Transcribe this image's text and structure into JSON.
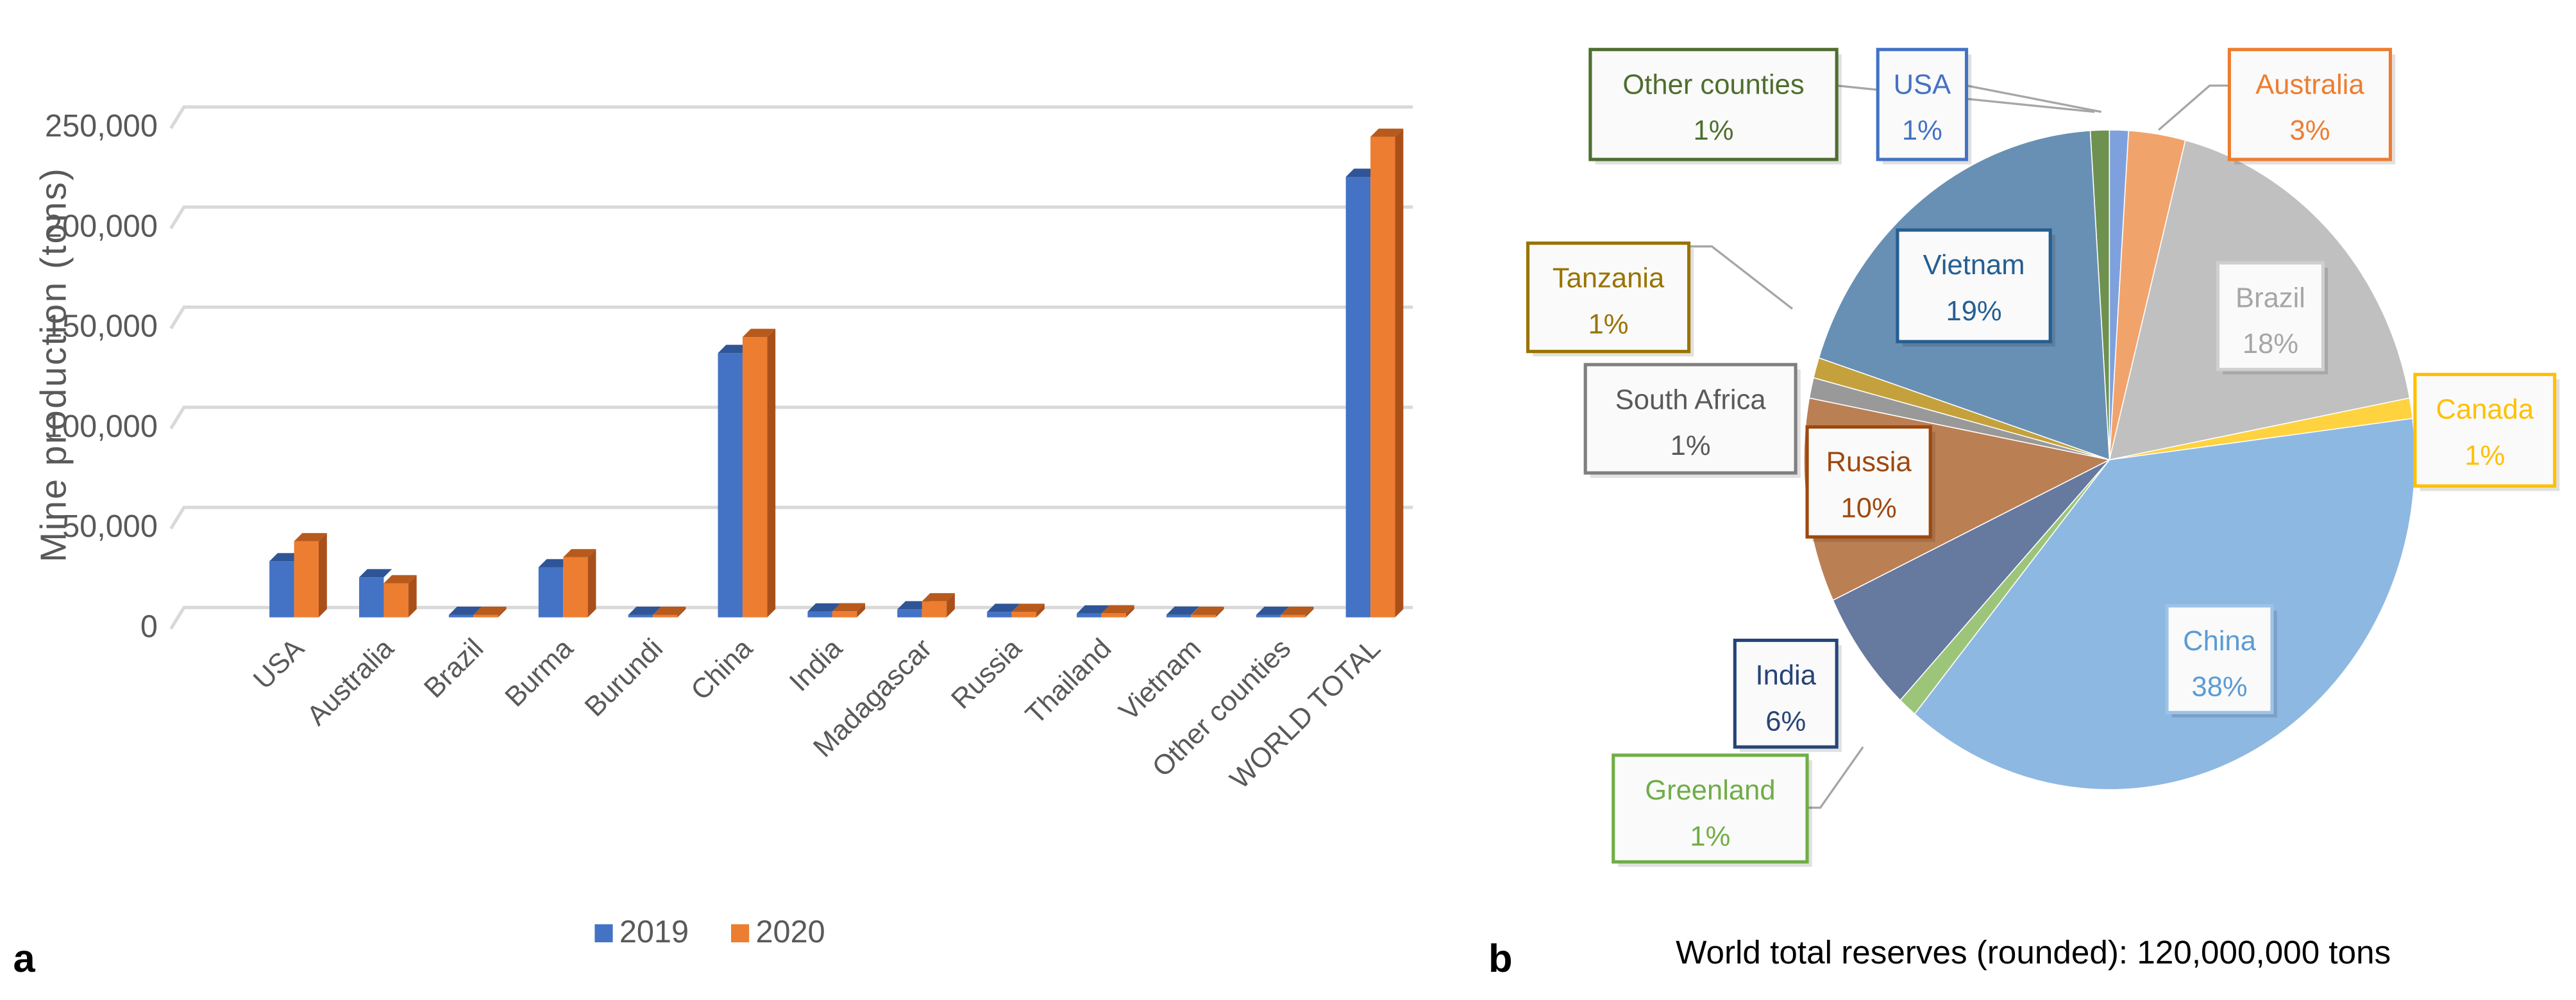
{
  "chart_data": [
    {
      "type": "bar",
      "panel_label": "a",
      "title": "",
      "xlabel": "",
      "ylabel": "Mine production (tons)",
      "ylim": [
        0,
        250000
      ],
      "yticks": [
        "0",
        "50,000",
        "100,000",
        "150,000",
        "200,000",
        "250,000"
      ],
      "ytick_values": [
        0,
        50000,
        100000,
        150000,
        200000,
        250000
      ],
      "grid": true,
      "legend_position": "bottom",
      "categories": [
        "USA",
        "Australia",
        "Brazil",
        "Burma",
        "Burundi",
        "China",
        "India",
        "Madagascar",
        "Russia",
        "Thailand",
        "Vietnam",
        "Other counties",
        "WORLD TOTAL"
      ],
      "series": [
        {
          "name": "2019",
          "color": "#4472c4",
          "values": [
            28000,
            20000,
            710,
            25000,
            200,
            132000,
            2900,
            4000,
            2700,
            1900,
            1300,
            100,
            220000
          ]
        },
        {
          "name": "2020",
          "color": "#ed7d31",
          "values": [
            38000,
            17000,
            600,
            30000,
            300,
            140000,
            3000,
            8000,
            2700,
            2000,
            1000,
            100,
            240000
          ]
        }
      ]
    },
    {
      "type": "pie",
      "panel_label": "b",
      "caption": "World total reserves (rounded): 120,000,000 tons",
      "slices": [
        {
          "label": "Other counties",
          "value": 1,
          "text": "1%",
          "color": "#6f9150",
          "border": "#4e6e2e"
        },
        {
          "label": "USA",
          "value": 1,
          "text": "1%",
          "color": "#7ea1de",
          "border": "#4472c4"
        },
        {
          "label": "Australia",
          "value": 3,
          "text": "3%",
          "color": "#f1a36c",
          "border": "#ed7d31"
        },
        {
          "label": "Brazil",
          "value": 18,
          "text": "18%",
          "color": "#c0c0c0",
          "border": "#cfcfcf"
        },
        {
          "label": "Canada",
          "value": 1,
          "text": "1%",
          "color": "#ffd23f",
          "border": "#ffc000"
        },
        {
          "label": "China",
          "value": 38,
          "text": "38%",
          "color": "#8db8e2",
          "border": "#9dc3e6"
        },
        {
          "label": "Greenland",
          "value": 1,
          "text": "1%",
          "color": "#9dc57a",
          "border": "#70ad47"
        },
        {
          "label": "India",
          "value": 6,
          "text": "6%",
          "color": "#66799f",
          "border": "#264478"
        },
        {
          "label": "Russia",
          "value": 10,
          "text": "10%",
          "color": "#bb7f54",
          "border": "#9e480e"
        },
        {
          "label": "South Africa",
          "value": 1,
          "text": "1%",
          "color": "#999999",
          "border": "#7f7f7f"
        },
        {
          "label": "Tanzania",
          "value": 1,
          "text": "1%",
          "color": "#c4a13c",
          "border": "#997300"
        },
        {
          "label": "Vietnam",
          "value": 19,
          "text": "19%",
          "color": "#6890b4",
          "border": "#255e91"
        }
      ]
    }
  ]
}
